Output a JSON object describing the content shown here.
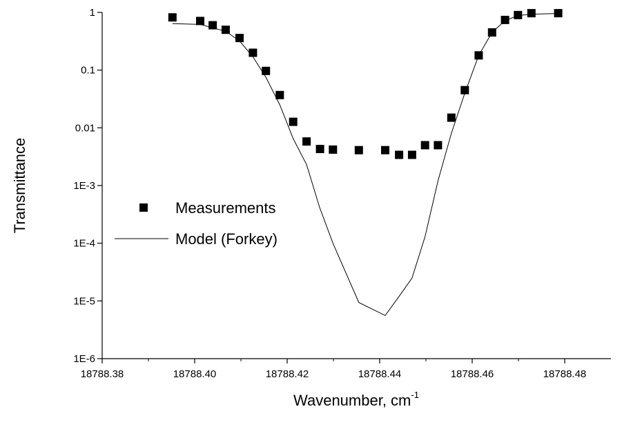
{
  "chart_data": {
    "type": "scatter",
    "xlabel": "Wavenumber, cm",
    "xlabel_superscript": "-1",
    "ylabel": "Transmittance",
    "y_scale": "log",
    "xlim": [
      18788.38,
      18788.49
    ],
    "ylim": [
      1e-06,
      1
    ],
    "x_ticks": [
      "18788.38",
      "18788.40",
      "18788.42",
      "18788.44",
      "18788.46",
      "18788.48"
    ],
    "y_ticks": [
      "1E-6",
      "1E-5",
      "1E-4",
      "1E-3",
      "0.01",
      "0.1",
      "1"
    ],
    "legend_position": "middle-left",
    "series": [
      {
        "name": "Measurements",
        "kind": "markers",
        "marker": "square",
        "color": "#000000",
        "x": [
          18788.3952,
          18788.4012,
          18788.4039,
          18788.4067,
          18788.4097,
          18788.4126,
          18788.4154,
          18788.4184,
          18788.4213,
          18788.4242,
          18788.4271,
          18788.4299,
          18788.4355,
          18788.4412,
          18788.4442,
          18788.447,
          18788.4498,
          18788.4526,
          18788.4555,
          18788.4584,
          18788.4614,
          18788.4643,
          18788.4671,
          18788.4699,
          18788.4728,
          18788.4786
        ],
        "y": [
          0.82,
          0.71,
          0.6,
          0.5,
          0.36,
          0.2,
          0.097,
          0.037,
          0.0127,
          0.0058,
          0.0043,
          0.0042,
          0.0041,
          0.0041,
          0.0034,
          0.0034,
          0.005,
          0.005,
          0.015,
          0.045,
          0.18,
          0.45,
          0.74,
          0.9,
          0.97,
          0.97
        ]
      },
      {
        "name": "Model (Forkey)",
        "kind": "line",
        "color": "#000000",
        "x": [
          18788.3952,
          18788.4012,
          18788.4067,
          18788.4097,
          18788.4126,
          18788.4154,
          18788.4184,
          18788.4213,
          18788.4242,
          18788.427,
          18788.4299,
          18788.4355,
          18788.4412,
          18788.4442,
          18788.447,
          18788.4498,
          18788.4526,
          18788.4555,
          18788.4584,
          18788.4614,
          18788.4643,
          18788.4671,
          18788.4699,
          18788.4728,
          18788.4786
        ],
        "y": [
          0.64,
          0.62,
          0.47,
          0.32,
          0.17,
          0.075,
          0.025,
          0.0065,
          0.0023,
          0.00042,
          0.0001,
          9.4e-06,
          5.6e-06,
          1.2e-05,
          2.5e-05,
          0.00013,
          0.0012,
          0.008,
          0.04,
          0.18,
          0.45,
          0.72,
          0.88,
          0.93,
          0.96
        ]
      }
    ]
  }
}
